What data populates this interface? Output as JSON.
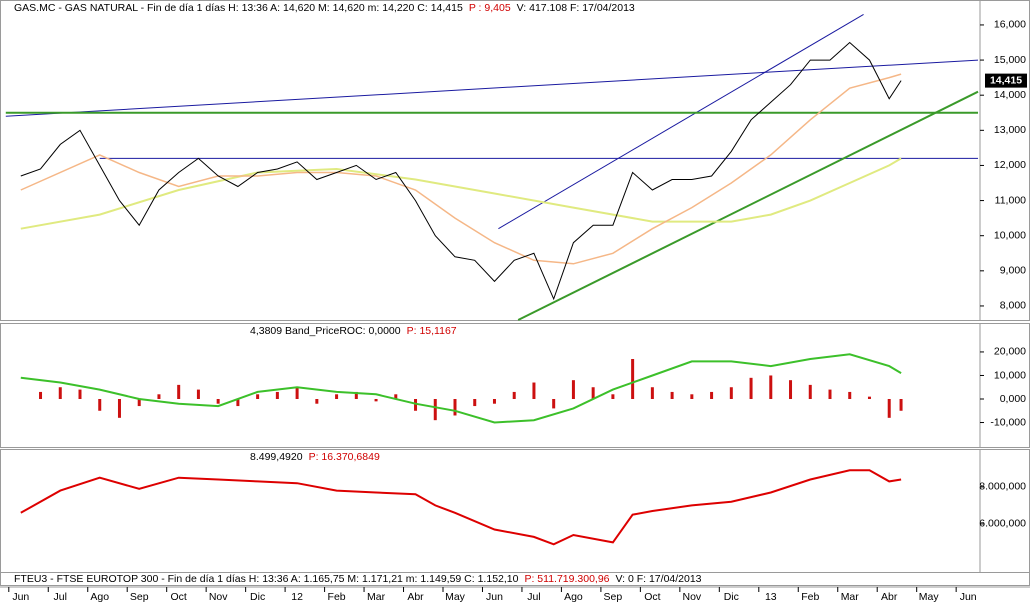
{
  "chart_data": [
    {
      "type": "line",
      "header": [
        {
          "text": "GAS.MC - GAS NATURAL - Fin de día 1 días  H: 13:36  A: 14,620  M: 14,620  m: 14,220  C: 14,415",
          "color": "#000000"
        },
        {
          "text": "P : 9,405",
          "color": "#d00000"
        },
        {
          "text": "V: 417.108  F: 17/04/2013",
          "color": "#000000"
        }
      ],
      "xlim": [
        -0.4,
        24.3
      ],
      "ylim": [
        7.6,
        16.71
      ],
      "yticks": [
        {
          "value": 8,
          "label": "8,000"
        },
        {
          "value": 9,
          "label": "9,000"
        },
        {
          "value": 10,
          "label": "10,000"
        },
        {
          "value": 11,
          "label": "11,000"
        },
        {
          "value": 12,
          "label": "12,000"
        },
        {
          "value": 13,
          "label": "13,000"
        },
        {
          "value": 14,
          "label": "14,000"
        },
        {
          "value": 15,
          "label": "15,000"
        },
        {
          "value": 16,
          "label": "16,000"
        }
      ],
      "last_value": {
        "value": 14.415,
        "label": "14,415"
      },
      "series": [
        {
          "color": "#e0ea80",
          "width": 2,
          "x": [
            0,
            2,
            4,
            6,
            8,
            10,
            12,
            14,
            16,
            18,
            19,
            20,
            21,
            22,
            22.3
          ],
          "values": [
            10.2,
            10.6,
            11.3,
            11.8,
            11.9,
            11.6,
            11.2,
            10.8,
            10.4,
            10.4,
            10.6,
            11.0,
            11.5,
            12.0,
            12.2
          ]
        },
        {
          "color": "#f5b787",
          "width": 1.5,
          "x": [
            0,
            2,
            3,
            4,
            5,
            6,
            7,
            8,
            9,
            10,
            11,
            12,
            13,
            14,
            15,
            16,
            17,
            18,
            19,
            20,
            21,
            22,
            22.3
          ],
          "values": [
            11.3,
            12.3,
            11.8,
            11.4,
            11.7,
            11.7,
            11.8,
            11.8,
            11.7,
            11.3,
            10.5,
            9.8,
            9.3,
            9.2,
            9.5,
            10.2,
            10.8,
            11.5,
            12.3,
            13.3,
            14.2,
            14.5,
            14.6
          ]
        },
        {
          "color": "#000000",
          "width": 1,
          "x": [
            0,
            0.5,
            1,
            1.5,
            2,
            2.5,
            3,
            3.5,
            4,
            4.5,
            5,
            5.5,
            6,
            6.5,
            7,
            7.5,
            8,
            8.5,
            9,
            9.5,
            10,
            10.5,
            11,
            11.5,
            12,
            12.5,
            13,
            13.5,
            14,
            14.5,
            15,
            15.5,
            16,
            16.5,
            17,
            17.5,
            18,
            18.5,
            19,
            19.5,
            20,
            20.5,
            21,
            21.5,
            22,
            22.3
          ],
          "values": [
            11.7,
            11.9,
            12.6,
            13.0,
            12.0,
            11.0,
            10.3,
            11.3,
            11.8,
            12.2,
            11.7,
            11.4,
            11.8,
            11.9,
            12.1,
            11.6,
            11.8,
            12.0,
            11.6,
            11.8,
            11.0,
            10.0,
            9.4,
            9.3,
            8.7,
            9.3,
            9.5,
            8.2,
            9.8,
            10.3,
            10.3,
            11.8,
            11.3,
            11.6,
            11.6,
            11.7,
            12.4,
            13.3,
            13.8,
            14.3,
            15.0,
            15.0,
            15.5,
            15.0,
            13.9,
            14.415
          ]
        }
      ],
      "trendlines": [
        {
          "color": "#1a1aa0",
          "x": [
            -0.38,
            24.25
          ],
          "y": [
            13.4,
            15.0
          ]
        },
        {
          "color": "#1a1aa0",
          "x": [
            2,
            24.25
          ],
          "y": [
            12.2,
            12.2
          ]
        },
        {
          "color": "#1a1aa0",
          "x": [
            12.1,
            21.35
          ],
          "y": [
            10.2,
            16.3
          ]
        },
        {
          "color": "#3a9a2a",
          "x": [
            -0.38,
            24.25
          ],
          "y": [
            13.5,
            13.5
          ]
        },
        {
          "color": "#3a9a2a",
          "x": [
            12.6,
            24.25
          ],
          "y": [
            7.6,
            14.1
          ]
        }
      ]
    },
    {
      "type": "combo",
      "header": [
        {
          "text": "4,3809 Band_PriceROC: 0,0000",
          "color": "#000000"
        },
        {
          "text": "P: 15,1167",
          "color": "#d00000"
        }
      ],
      "xlim": [
        -0.4,
        24.3
      ],
      "ylim": [
        -20.4,
        32.3
      ],
      "yticks": [
        {
          "value": -10,
          "label": "-10,000"
        },
        {
          "value": 0,
          "label": "0,000"
        },
        {
          "value": 10,
          "label": "10,000"
        },
        {
          "value": 20,
          "label": "20,000"
        }
      ],
      "series": [
        {
          "type": "bar",
          "color": "#cc1010",
          "x": [
            0,
            0.5,
            1,
            1.5,
            2,
            2.5,
            3,
            3.5,
            4,
            4.5,
            5,
            5.5,
            6,
            6.5,
            7,
            7.5,
            8,
            8.5,
            9,
            9.5,
            10,
            10.5,
            11,
            11.5,
            12,
            12.5,
            13,
            13.5,
            14,
            14.5,
            15,
            15.5,
            16,
            16.5,
            17,
            17.5,
            18,
            18.5,
            19,
            19.5,
            20,
            20.5,
            21,
            21.5,
            22,
            22.3
          ],
          "values": [
            0,
            3,
            5,
            4,
            -5,
            -8,
            -3,
            2,
            6,
            4,
            -2,
            -3,
            2,
            3,
            5,
            -2,
            2,
            3,
            -1,
            2,
            -5,
            -9,
            -7,
            -3,
            -2,
            3,
            7,
            -4,
            8,
            5,
            2,
            17,
            5,
            3,
            2,
            3,
            5,
            9,
            10,
            8,
            6,
            4,
            3,
            1,
            -8,
            -5
          ]
        },
        {
          "type": "line",
          "color": "#3cc02a",
          "width": 2,
          "x": [
            0,
            1,
            2,
            3,
            4,
            5,
            6,
            7,
            8,
            9,
            10,
            11,
            12,
            13,
            14,
            15,
            16,
            17,
            18,
            19,
            20,
            21,
            22,
            22.3
          ],
          "values": [
            9,
            7,
            4,
            0,
            -2,
            -3,
            3,
            5,
            3,
            2,
            -2,
            -5,
            -10,
            -9,
            -4,
            4,
            10,
            16,
            16,
            14,
            17,
            19,
            14,
            11
          ]
        }
      ]
    },
    {
      "type": "line",
      "header": [
        {
          "text": "8.499,4920",
          "color": "#000000"
        },
        {
          "text": "P: 16.370,6849",
          "color": "#d00000"
        }
      ],
      "xlim": [
        -0.4,
        24.3
      ],
      "ylim": [
        3400,
        10050
      ],
      "yticks": [
        {
          "value": 6000,
          "label": "6.000,000"
        },
        {
          "value": 8000,
          "label": "8.000,000"
        }
      ],
      "xticks": [
        {
          "value": 0,
          "label": "Jun"
        },
        {
          "value": 1,
          "label": "Jul"
        },
        {
          "value": 2,
          "label": "Ago"
        },
        {
          "value": 3,
          "label": "Sep"
        },
        {
          "value": 4,
          "label": "Oct"
        },
        {
          "value": 5,
          "label": "Nov"
        },
        {
          "value": 6,
          "label": "Dic"
        },
        {
          "value": 7,
          "label": "12"
        },
        {
          "value": 8,
          "label": "Feb"
        },
        {
          "value": 9,
          "label": "Mar"
        },
        {
          "value": 10,
          "label": "Abr"
        },
        {
          "value": 11,
          "label": "May"
        },
        {
          "value": 12,
          "label": "Jun"
        },
        {
          "value": 13,
          "label": "Jul"
        },
        {
          "value": 14,
          "label": "Ago"
        },
        {
          "value": 15,
          "label": "Sep"
        },
        {
          "value": 16,
          "label": "Oct"
        },
        {
          "value": 17,
          "label": "Nov"
        },
        {
          "value": 18,
          "label": "Dic"
        },
        {
          "value": 19,
          "label": "13"
        },
        {
          "value": 20,
          "label": "Feb"
        },
        {
          "value": 21,
          "label": "Mar"
        },
        {
          "value": 22,
          "label": "Abr"
        },
        {
          "value": 23,
          "label": "May"
        },
        {
          "value": 24,
          "label": "Jun"
        }
      ],
      "series": [
        {
          "color": "#dd0000",
          "width": 2,
          "x": [
            0,
            1,
            2,
            3,
            4,
            5,
            6,
            7,
            8,
            9,
            10,
            10.5,
            11,
            12,
            13,
            13.5,
            14,
            15,
            15.5,
            16,
            17,
            18,
            19,
            20,
            21,
            21.5,
            22,
            22.3
          ],
          "values": [
            6600,
            7800,
            8500,
            7900,
            8500,
            8400,
            8300,
            8200,
            7800,
            7700,
            7600,
            7000,
            6600,
            5700,
            5300,
            4900,
            5400,
            5000,
            6500,
            6700,
            7000,
            7200,
            7700,
            8400,
            8900,
            8900,
            8300,
            8400
          ]
        }
      ]
    }
  ],
  "footer": [
    {
      "text": "FTEU3 - FTSE EUROTOP 300 - Fin de día 1 días  H: 13:36  A: 1.165,75  M: 1.171,21  m: 1.149,59  C: 1.152,10",
      "color": "#000000"
    },
    {
      "text": "P: 511.719.300,96",
      "color": "#d00000"
    },
    {
      "text": "V: 0  F: 17/04/2013",
      "color": "#000000"
    }
  ]
}
